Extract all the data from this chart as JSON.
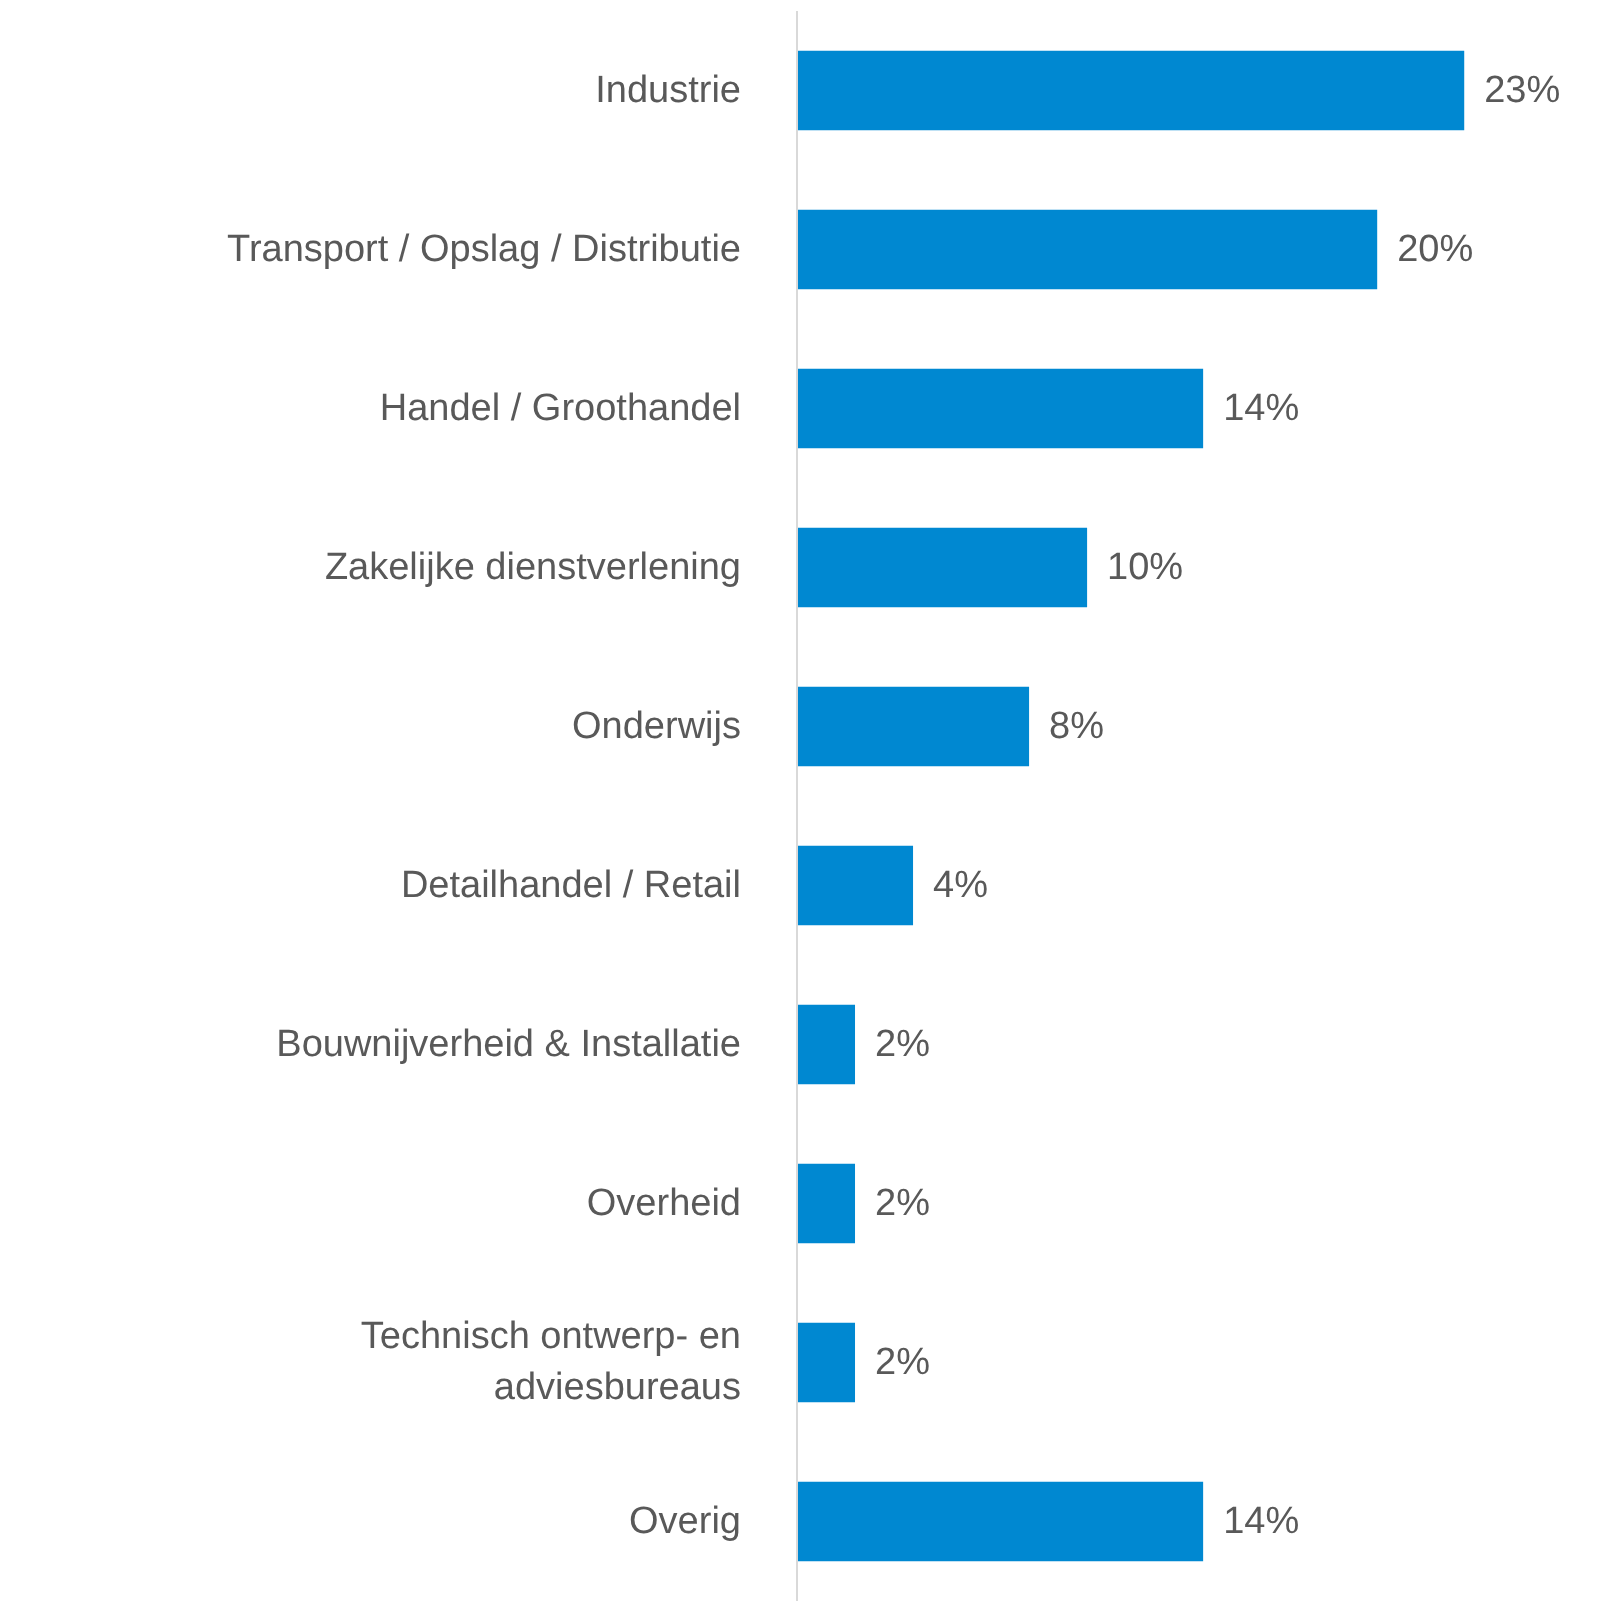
{
  "chart_data": {
    "type": "bar",
    "orientation": "horizontal",
    "categories": [
      "Industrie",
      "Transport / Opslag / Distributie",
      "Handel / Groothandel",
      "Zakelijke dienstverlening",
      "Onderwijs",
      "Detailhandel / Retail",
      "Bouwnijverheid & Installatie",
      "Overheid",
      "Technisch ontwerp- en adviesbureaus",
      "Overig"
    ],
    "values": [
      23,
      20,
      14,
      10,
      8,
      4,
      2,
      2,
      2,
      14
    ],
    "value_labels": [
      "23%",
      "20%",
      "14%",
      "10%",
      "8%",
      "4%",
      "2%",
      "2%",
      "2%",
      "14%"
    ],
    "color": "#0088d1"
  }
}
